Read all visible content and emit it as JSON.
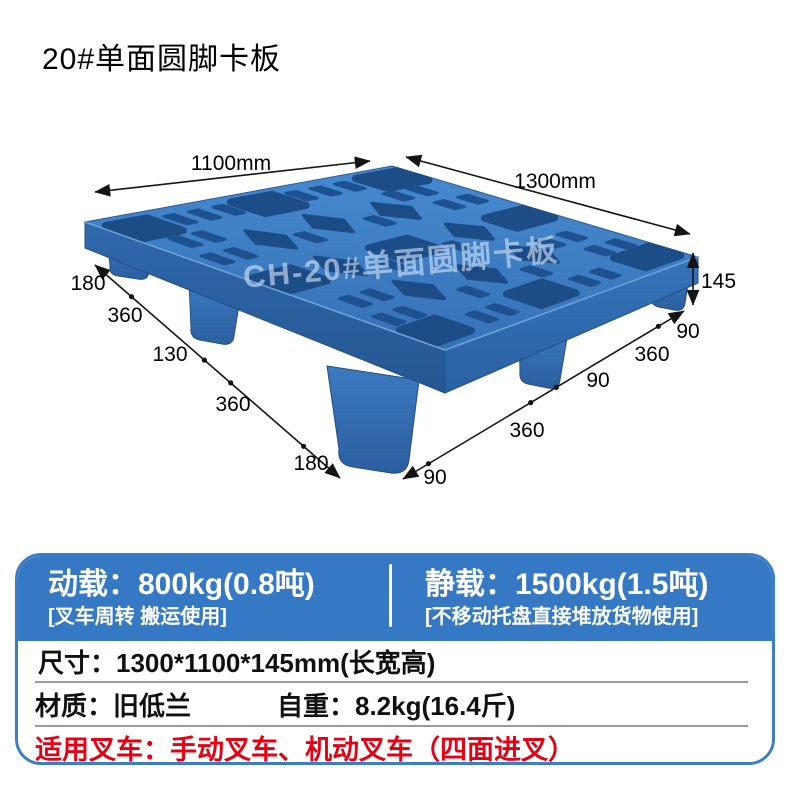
{
  "page": {
    "title": "20#单面圆脚卡板"
  },
  "pallet": {
    "watermark": "CH-20#单面圆脚卡板"
  },
  "dims": {
    "width_label": "1100mm",
    "length_label": "1300mm",
    "height_label": "145",
    "left_edge": [
      "180",
      "360",
      "130",
      "360",
      "180"
    ],
    "right_edge": [
      "90",
      "360",
      "90",
      "360",
      "90"
    ]
  },
  "panel": {
    "dynamic_load": {
      "title": "动载：800kg(0.8吨)",
      "note": "[叉车周转 搬运使用]"
    },
    "static_load": {
      "title": "静载：1500kg(1.5吨)",
      "note": "[不移动托盘直接堆放货物使用]"
    },
    "size_row": "尺寸：1300*1100*145mm(长宽高)",
    "material_label": "材质：旧低兰",
    "weight_label": "自重：8.2kg(16.4斤)",
    "forklift_row": "适用叉车：手动叉车、机动叉车（四面进叉）"
  },
  "colors": {
    "accent_blue": "#3579c5",
    "pallet_blue": "#3d7ec6",
    "hole_blue": "#1d4d87",
    "alert_red": "#e60012"
  }
}
